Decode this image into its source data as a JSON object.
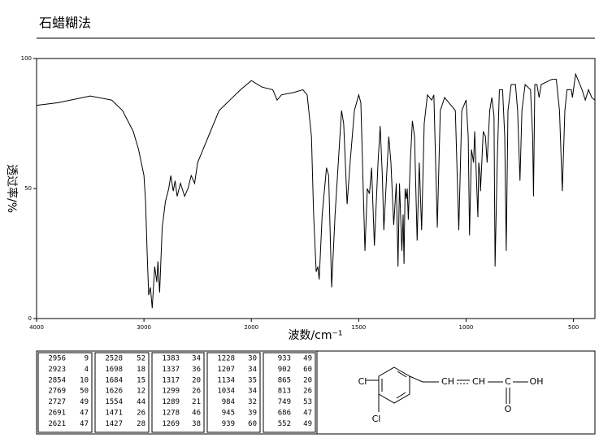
{
  "chart_data": {
    "type": "line",
    "title": "石蜡糊法",
    "x_label": "波数/cm⁻¹",
    "y_label": "透过率/%",
    "xlim": [
      4000,
      400
    ],
    "xticks": [
      4000,
      3000,
      2000,
      1500,
      1000,
      500
    ],
    "ylim": [
      0,
      100
    ],
    "yticks": [
      0,
      50,
      100
    ],
    "color": "#000000",
    "x": [
      4000,
      3800,
      3500,
      3300,
      3200,
      3100,
      3050,
      3000,
      2985,
      2970,
      2956,
      2940,
      2923,
      2900,
      2880,
      2870,
      2854,
      2830,
      2800,
      2769,
      2750,
      2727,
      2710,
      2691,
      2660,
      2621,
      2590,
      2560,
      2528,
      2500,
      2400,
      2300,
      2200,
      2100,
      2000,
      1950,
      1900,
      1880,
      1860,
      1800,
      1760,
      1740,
      1720,
      1710,
      1698,
      1690,
      1684,
      1670,
      1650,
      1640,
      1626,
      1610,
      1580,
      1570,
      1554,
      1540,
      1520,
      1500,
      1490,
      1471,
      1460,
      1450,
      1440,
      1427,
      1410,
      1400,
      1390,
      1383,
      1370,
      1360,
      1350,
      1337,
      1325,
      1317,
      1310,
      1299,
      1293,
      1289,
      1284,
      1278,
      1274,
      1269,
      1260,
      1250,
      1240,
      1228,
      1218,
      1207,
      1195,
      1180,
      1160,
      1150,
      1134,
      1120,
      1100,
      1080,
      1050,
      1034,
      1020,
      1000,
      990,
      984,
      975,
      965,
      960,
      945,
      941,
      935,
      933,
      920,
      910,
      902,
      890,
      880,
      870,
      865,
      855,
      845,
      830,
      820,
      813,
      805,
      790,
      770,
      760,
      749,
      740,
      725,
      700,
      690,
      686,
      680,
      670,
      660,
      650,
      600,
      580,
      565,
      552,
      540,
      530,
      510,
      505,
      490,
      480,
      460,
      445,
      430,
      415,
      400
    ],
    "values": [
      82,
      83,
      85.6,
      84,
      80,
      72,
      65,
      55,
      45,
      25,
      9,
      12,
      4,
      20,
      14,
      22,
      10,
      35,
      45,
      50,
      55,
      49,
      53,
      47,
      52,
      47,
      50,
      55,
      52,
      60,
      70,
      80,
      84,
      88,
      91.5,
      89,
      88,
      84,
      86,
      87,
      88,
      86,
      70,
      40,
      18,
      20,
      15,
      40,
      58,
      55,
      12,
      40,
      80,
      75,
      44,
      60,
      80,
      86,
      83,
      26,
      50,
      48,
      58,
      28,
      60,
      74,
      55,
      34,
      55,
      70,
      60,
      36,
      52,
      20,
      52,
      26,
      40,
      21,
      50,
      46,
      50,
      38,
      60,
      76,
      70,
      30,
      60,
      34,
      75,
      86,
      84,
      86,
      35,
      80,
      85,
      83,
      80,
      34,
      80,
      84,
      70,
      32,
      65,
      60,
      72,
      39,
      60,
      55,
      49,
      72,
      70,
      60,
      80,
      85,
      78,
      20,
      60,
      88,
      88,
      70,
      26,
      80,
      90,
      90,
      80,
      53,
      80,
      90,
      88,
      70,
      47,
      90,
      90,
      85,
      90,
      92,
      92,
      80,
      49,
      80,
      88,
      88,
      85,
      94,
      92,
      88,
      84,
      88,
      85,
      84
    ]
  },
  "peak_table": {
    "columns": [
      [
        [
          2956,
          9
        ],
        [
          2923,
          4
        ],
        [
          2854,
          10
        ],
        [
          2769,
          50
        ],
        [
          2727,
          49
        ],
        [
          2691,
          47
        ],
        [
          2621,
          47
        ]
      ],
      [
        [
          2528,
          52
        ],
        [
          1698,
          18
        ],
        [
          1684,
          15
        ],
        [
          1626,
          12
        ],
        [
          1554,
          44
        ],
        [
          1471,
          26
        ],
        [
          1427,
          28
        ]
      ],
      [
        [
          1383,
          34
        ],
        [
          1337,
          36
        ],
        [
          1317,
          20
        ],
        [
          1299,
          26
        ],
        [
          1289,
          21
        ],
        [
          1278,
          46
        ],
        [
          1269,
          38
        ]
      ],
      [
        [
          1228,
          30
        ],
        [
          1207,
          34
        ],
        [
          1134,
          35
        ],
        [
          1034,
          34
        ],
        [
          984,
          32
        ],
        [
          945,
          39
        ],
        [
          939,
          60
        ]
      ],
      [
        [
          933,
          49
        ],
        [
          902,
          60
        ],
        [
          865,
          20
        ],
        [
          813,
          26
        ],
        [
          749,
          53
        ],
        [
          686,
          47
        ],
        [
          552,
          49
        ]
      ]
    ]
  },
  "structure": {
    "labels": [
      "Cl",
      "Cl",
      "CH",
      "CH",
      "C",
      "OH",
      "O"
    ]
  }
}
